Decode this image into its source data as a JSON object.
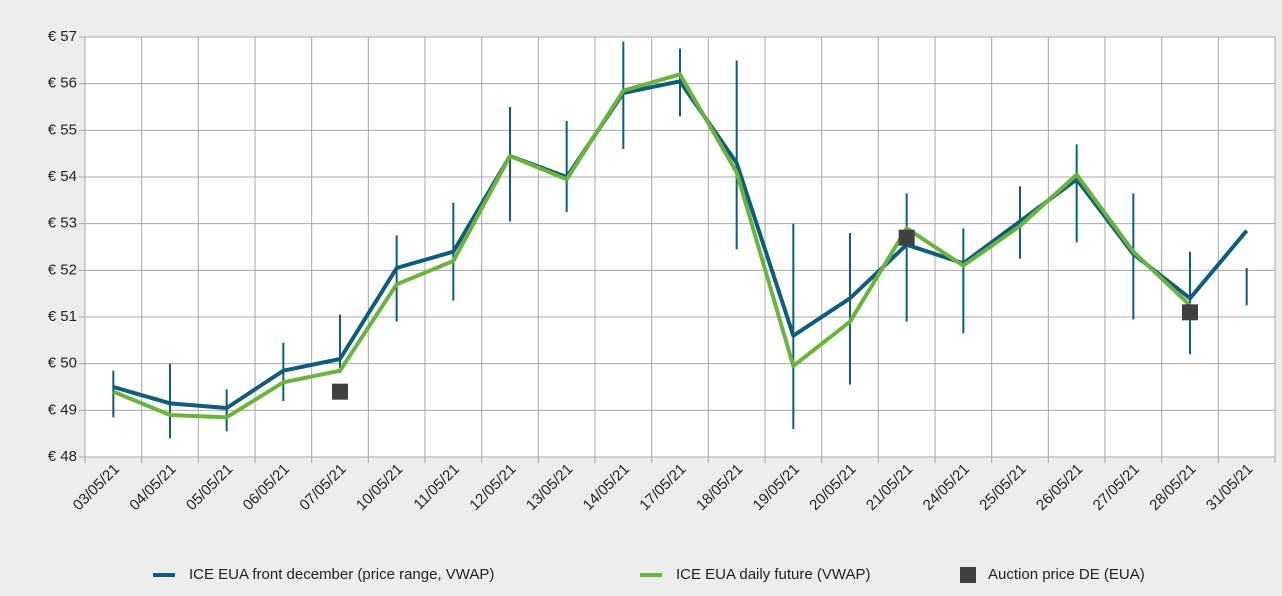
{
  "chart_data": {
    "type": "line",
    "categories": [
      "03/05/21",
      "04/05/21",
      "05/05/21",
      "06/05/21",
      "07/05/21",
      "10/05/21",
      "11/05/21",
      "12/05/21",
      "13/05/21",
      "14/05/21",
      "17/05/21",
      "18/05/21",
      "19/05/21",
      "20/05/21",
      "21/05/21",
      "24/05/21",
      "25/05/21",
      "26/05/21",
      "27/05/21",
      "28/05/21",
      "31/05/21"
    ],
    "series": [
      {
        "name": "ICE EUA front december (price range, VWAP)",
        "color": "#0e5c7e",
        "values": [
          49.5,
          49.15,
          49.05,
          49.85,
          50.1,
          52.05,
          52.4,
          54.45,
          54.0,
          55.8,
          56.05,
          54.3,
          50.6,
          51.4,
          52.55,
          52.15,
          53.05,
          53.95,
          52.35,
          51.4,
          52.85
        ],
        "low": [
          48.85,
          48.4,
          48.55,
          49.2,
          49.8,
          50.9,
          51.35,
          53.05,
          53.25,
          54.6,
          55.3,
          52.45,
          48.6,
          49.55,
          50.9,
          50.65,
          52.25,
          52.6,
          50.95,
          50.2,
          51.25
        ],
        "high": [
          49.85,
          50.0,
          49.45,
          50.45,
          51.05,
          52.75,
          53.45,
          55.5,
          55.2,
          56.9,
          56.75,
          56.5,
          53.0,
          52.8,
          53.65,
          52.9,
          53.8,
          54.7,
          53.65,
          52.4,
          52.05
        ]
      },
      {
        "name": "ICE EUA daily future (VWAP)",
        "color": "#6ab43e",
        "values": [
          49.4,
          48.9,
          48.85,
          49.6,
          49.85,
          51.7,
          52.2,
          54.45,
          53.95,
          55.85,
          56.2,
          54.1,
          49.95,
          50.9,
          52.9,
          52.1,
          52.95,
          54.05,
          52.4,
          51.25,
          null
        ]
      },
      {
        "name": "Auction price DE (EUA)",
        "color": "#404040",
        "marker": "square",
        "values": [
          null,
          null,
          null,
          null,
          49.4,
          null,
          null,
          null,
          null,
          null,
          null,
          null,
          null,
          null,
          52.7,
          null,
          null,
          null,
          null,
          51.1,
          null
        ]
      }
    ],
    "ylim": [
      48,
      57
    ],
    "yticks": [
      {
        "value": 48,
        "label": "€ 48"
      },
      {
        "value": 49,
        "label": "€ 49"
      },
      {
        "value": 50,
        "label": "€ 50"
      },
      {
        "value": 51,
        "label": "€ 51"
      },
      {
        "value": 52,
        "label": "€ 52"
      },
      {
        "value": 53,
        "label": "€ 53"
      },
      {
        "value": 54,
        "label": "€ 54"
      },
      {
        "value": 55,
        "label": "€ 55"
      },
      {
        "value": 56,
        "label": "€ 56"
      },
      {
        "value": 57,
        "label": "€ 57"
      }
    ],
    "grid": true,
    "legend": "bottom"
  }
}
